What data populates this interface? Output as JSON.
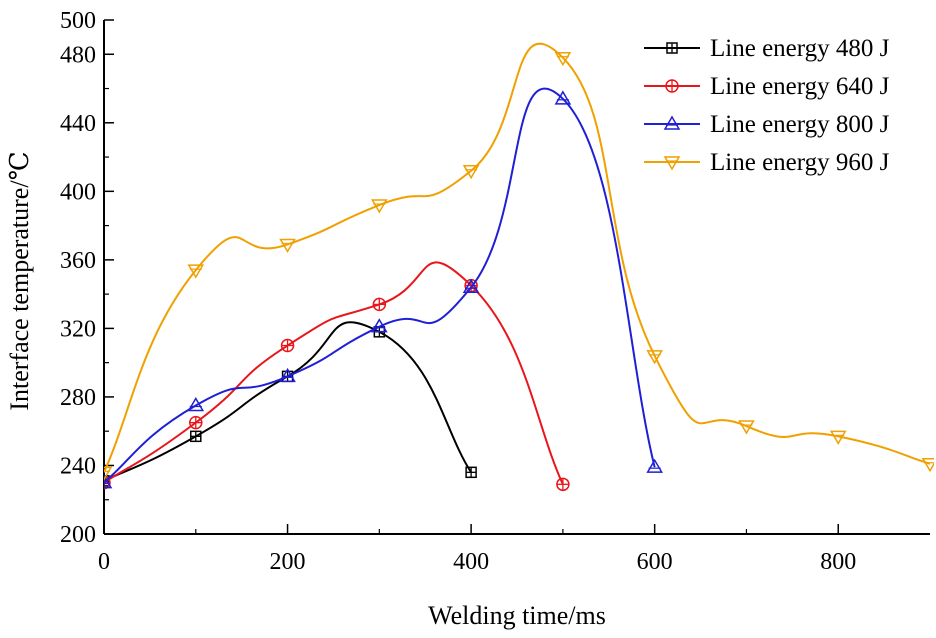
{
  "chart_data": {
    "type": "line",
    "xlabel": "Welding time/ms",
    "ylabel": "Interface temperature/℃",
    "xlim": [
      0,
      900
    ],
    "ylim": [
      200,
      500
    ],
    "x_ticks": [
      "0",
      "200",
      "400",
      "600",
      "800"
    ],
    "y_ticks": [
      "200",
      "240",
      "280",
      "320",
      "360",
      "400",
      "440",
      "480",
      "500"
    ],
    "grid": false,
    "legend_position": "top-right",
    "series": [
      {
        "name": "Line energy 480 J",
        "color": "#000000",
        "marker": "square-plus",
        "x": [
          0,
          100,
          200,
          300,
          400
        ],
        "y": [
          231,
          257,
          292,
          318,
          236
        ]
      },
      {
        "name": "Line energy 640 J",
        "color": "#e8161a",
        "marker": "circle-plus",
        "x": [
          0,
          100,
          200,
          300,
          400,
          500
        ],
        "y": [
          230,
          265,
          310,
          334,
          345,
          229
        ]
      },
      {
        "name": "Line energy 800 J",
        "color": "#1f1fd6",
        "marker": "triangle-up",
        "x": [
          0,
          100,
          200,
          300,
          400,
          500,
          600
        ],
        "y": [
          230,
          275,
          292,
          321,
          344,
          454,
          239
        ]
      },
      {
        "name": "Line energy 960 J",
        "color": "#f0a000",
        "marker": "triangle-down",
        "x": [
          0,
          100,
          200,
          300,
          400,
          500,
          600,
          700,
          800,
          900
        ],
        "y": [
          236,
          354,
          369,
          392,
          412,
          478,
          304,
          263,
          257,
          241
        ]
      }
    ]
  }
}
